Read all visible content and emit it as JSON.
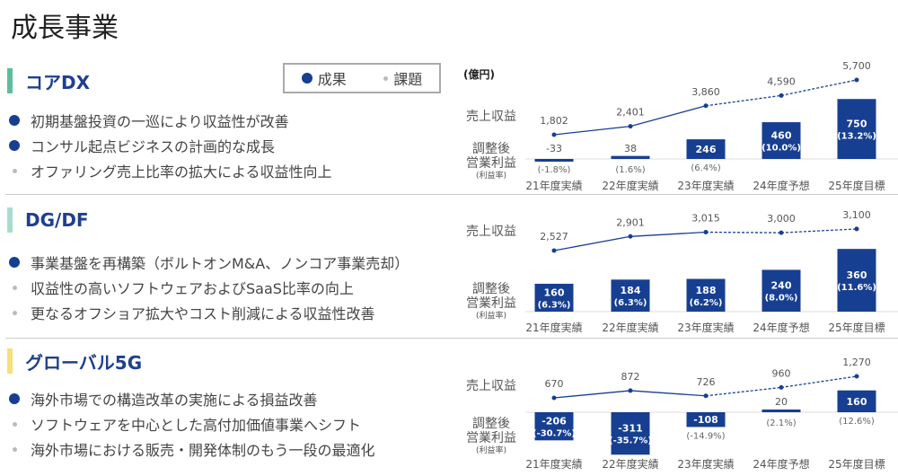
{
  "title": "成長事業",
  "legend": {
    "result": "成果",
    "issue": "課題"
  },
  "unit": "(億円)",
  "row_labels": {
    "revenue": "売上収益",
    "op_line1": "調整後",
    "op_line2": "営業利益",
    "op_line3": "(利益率)"
  },
  "colors": {
    "bar": "#173f91",
    "line": "#173f91"
  },
  "sections": [
    {
      "name": "コアDX",
      "accent": "#5cbf9a",
      "bullets": [
        {
          "type": "result",
          "text": "初期基盤投資の一巡により収益性が改善"
        },
        {
          "type": "result",
          "text": "コンサル起点ビジネスの計画的な成長"
        },
        {
          "type": "issue",
          "text": "オファリング売上比率の拡大による収益性向上"
        }
      ]
    },
    {
      "name": "DG/DF",
      "accent": "#a8dccf",
      "bullets": [
        {
          "type": "result",
          "text": "事業基盤を再構築（ボルトオンM&A、ノンコア事業売却）"
        },
        {
          "type": "issue",
          "text": "収益性の高いソフトウェアおよびSaaS比率の向上"
        },
        {
          "type": "issue",
          "text": "更なるオフショア拡大やコスト削減による収益性改善"
        }
      ]
    },
    {
      "name": "グローバル5G",
      "accent": "#f5e07a",
      "bullets": [
        {
          "type": "result",
          "text": "海外市場での構造改革の実施による損益改善"
        },
        {
          "type": "issue",
          "text": "ソフトウェアを中心とした高付加価値事業へシフト"
        },
        {
          "type": "issue",
          "text": "海外市場における販売・開発体制のもう一段の最適化"
        }
      ]
    }
  ],
  "chart_data": [
    {
      "type": "bar+line",
      "categories": [
        "21年度実績",
        "22年度実績",
        "23年度実績",
        "24年度予想",
        "25年度目標"
      ],
      "revenue": [
        1802,
        2401,
        3860,
        4590,
        5700
      ],
      "revenue_labels": [
        "1,802",
        "2,401",
        "3,860",
        "4,590",
        "5,700"
      ],
      "op_income": [
        -33,
        38,
        246,
        460,
        750
      ],
      "margin_labels": [
        "(-1.8%)",
        "(1.6%)",
        "(6.4%)",
        "(10.0%)",
        "(13.2%)"
      ],
      "actual_count": 3
    },
    {
      "type": "bar+line",
      "categories": [
        "21年度実績",
        "22年度実績",
        "23年度実績",
        "24年度予想",
        "25年度目標"
      ],
      "revenue": [
        2527,
        2901,
        3015,
        3000,
        3100
      ],
      "revenue_labels": [
        "2,527",
        "2,901",
        "3,015",
        "3,000",
        "3,100"
      ],
      "op_income": [
        160,
        184,
        188,
        240,
        360
      ],
      "margin_labels": [
        "(6.3%)",
        "(6.3%)",
        "(6.2%)",
        "(8.0%)",
        "(11.6%)"
      ],
      "actual_count": 3
    },
    {
      "type": "bar+line",
      "categories": [
        "21年度実績",
        "22年度実績",
        "23年度実績",
        "24年度予想",
        "25年度目標"
      ],
      "revenue": [
        670,
        872,
        726,
        960,
        1270
      ],
      "revenue_labels": [
        "670",
        "872",
        "726",
        "960",
        "1,270"
      ],
      "op_income": [
        -206,
        -311,
        -108,
        20,
        160
      ],
      "margin_labels": [
        "(-30.7%)",
        "(-35.7%)",
        "(-14.9%)",
        "(2.1%)",
        "(12.6%)"
      ],
      "actual_count": 3
    }
  ]
}
